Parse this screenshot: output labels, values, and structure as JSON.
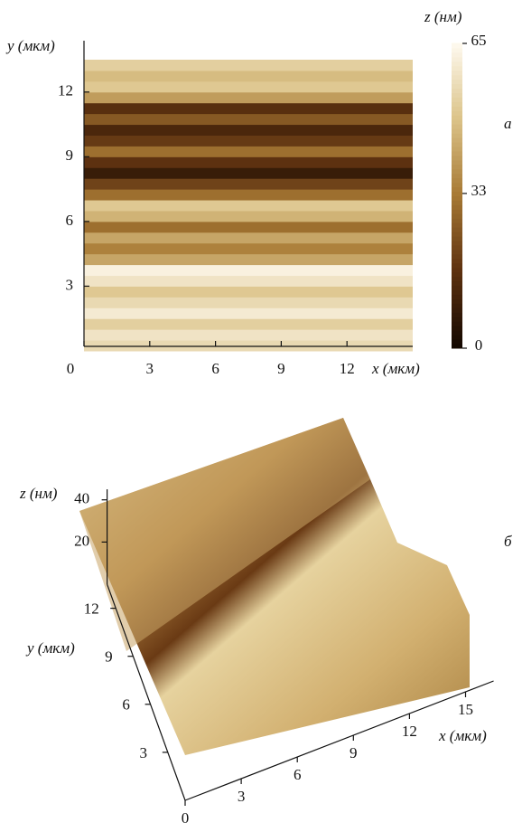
{
  "chart_data": [
    {
      "type": "heatmap",
      "panel_label": "а",
      "xlabel": "x (мкм)",
      "ylabel": "y (мкм)",
      "colorbar_label": "z (нм)",
      "xlim": [
        0,
        15
      ],
      "xticks": [
        0,
        3,
        6,
        9,
        12
      ],
      "ylim": [
        0,
        13.5
      ],
      "yticks": [
        3,
        6,
        9,
        12
      ],
      "zlim": [
        0,
        65
      ],
      "zticks": [
        0,
        33,
        65
      ],
      "colormap": [
        "#140800",
        "#5e3210",
        "#a87a35",
        "#dcc48a",
        "#fffbf2"
      ],
      "y": [
        0.25,
        0.75,
        1.25,
        1.75,
        2.25,
        2.75,
        3.25,
        3.75,
        4.25,
        4.75,
        5.25,
        5.75,
        6.25,
        6.75,
        7.25,
        7.75,
        8.25,
        8.75,
        9.25,
        9.75,
        10.25,
        10.75,
        11.25,
        11.75,
        12.25,
        12.75,
        13.25
      ],
      "values": [
        55,
        58,
        52,
        60,
        55,
        50,
        58,
        62,
        42,
        34,
        42,
        30,
        45,
        50,
        30,
        20,
        8,
        16,
        30,
        18,
        12,
        25,
        15,
        40,
        50,
        47,
        52
      ]
    },
    {
      "type": "surface3d",
      "panel_label": "б",
      "xlabel": "x (мкм)",
      "ylabel": "y (мкм)",
      "zlabel": "z (нм)",
      "xlim": [
        0,
        16.5
      ],
      "xticks": [
        0,
        3,
        6,
        9,
        12,
        15
      ],
      "ylim": [
        0,
        13.5
      ],
      "yticks": [
        3,
        6,
        9,
        12
      ],
      "zlim": [
        0,
        45
      ],
      "zticks": [
        20,
        40
      ]
    }
  ]
}
